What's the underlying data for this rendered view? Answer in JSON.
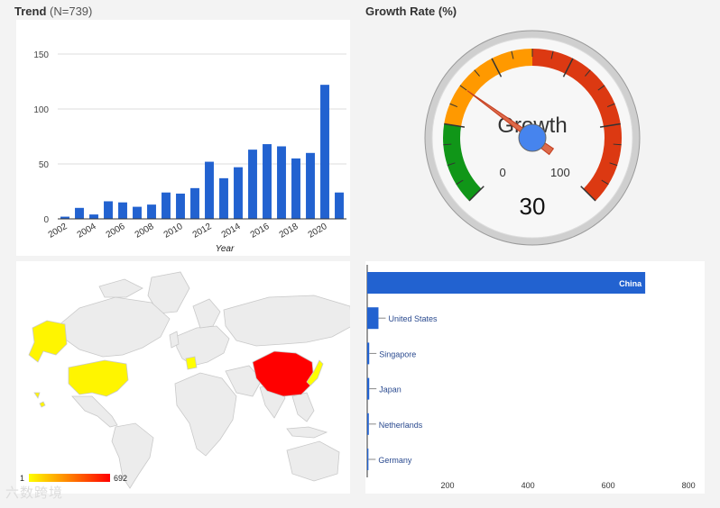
{
  "trend": {
    "title": "Trend",
    "count_label": "(N=739)"
  },
  "gauge_panel": {
    "title": "Growth Rate (%)"
  },
  "watermark": "六数跨境",
  "chart_data": [
    {
      "type": "bar",
      "title": "Trend (N=739)",
      "xlabel": "Year",
      "ylabel": "",
      "ylim": [
        0,
        150
      ],
      "yticks": [
        0,
        50,
        100,
        150
      ],
      "grid": true,
      "categories": [
        "2002",
        "2003",
        "2004",
        "2005",
        "2006",
        "2007",
        "2008",
        "2009",
        "2010",
        "2011",
        "2012",
        "2013",
        "2014",
        "2015",
        "2016",
        "2017",
        "2018",
        "2019",
        "2020",
        "2021"
      ],
      "xtick_labels": [
        "2002",
        "2004",
        "2006",
        "2008",
        "2010",
        "2012",
        "2014",
        "2016",
        "2018",
        "2020"
      ],
      "values": [
        2,
        10,
        4,
        16,
        15,
        11,
        13,
        24,
        23,
        28,
        52,
        37,
        47,
        63,
        68,
        66,
        55,
        60,
        122,
        24
      ],
      "color": "#2262d0"
    },
    {
      "type": "gauge",
      "label": "Growth",
      "value": 30,
      "value_text": "30",
      "min": 0,
      "max": 100,
      "min_label": "0",
      "max_label": "100",
      "bands": [
        {
          "from": 0,
          "to": 20,
          "color": "#109618"
        },
        {
          "from": 20,
          "to": 50,
          "color": "#ff9900"
        },
        {
          "from": 50,
          "to": 100,
          "color": "#dc3912"
        }
      ]
    },
    {
      "type": "map",
      "legend_min": "1",
      "legend_max": "692",
      "color_low": "#ffff00",
      "color_high": "#ff0000",
      "highlighted": [
        {
          "region": "China",
          "value": 692
        },
        {
          "region": "United States",
          "value": 28
        },
        {
          "region": "Singapore",
          "value": 5
        },
        {
          "region": "Japan",
          "value": 5
        },
        {
          "region": "Netherlands",
          "value": 4
        },
        {
          "region": "Germany",
          "value": 3
        }
      ]
    },
    {
      "type": "bar",
      "orientation": "horizontal",
      "categories": [
        "China",
        "United States",
        "Singapore",
        "Japan",
        "Netherlands",
        "Germany"
      ],
      "values": [
        692,
        28,
        5,
        5,
        4,
        3
      ],
      "xticks": [
        200,
        400,
        600,
        800
      ],
      "xlim": [
        0,
        840
      ],
      "color": "#2262d0"
    }
  ]
}
